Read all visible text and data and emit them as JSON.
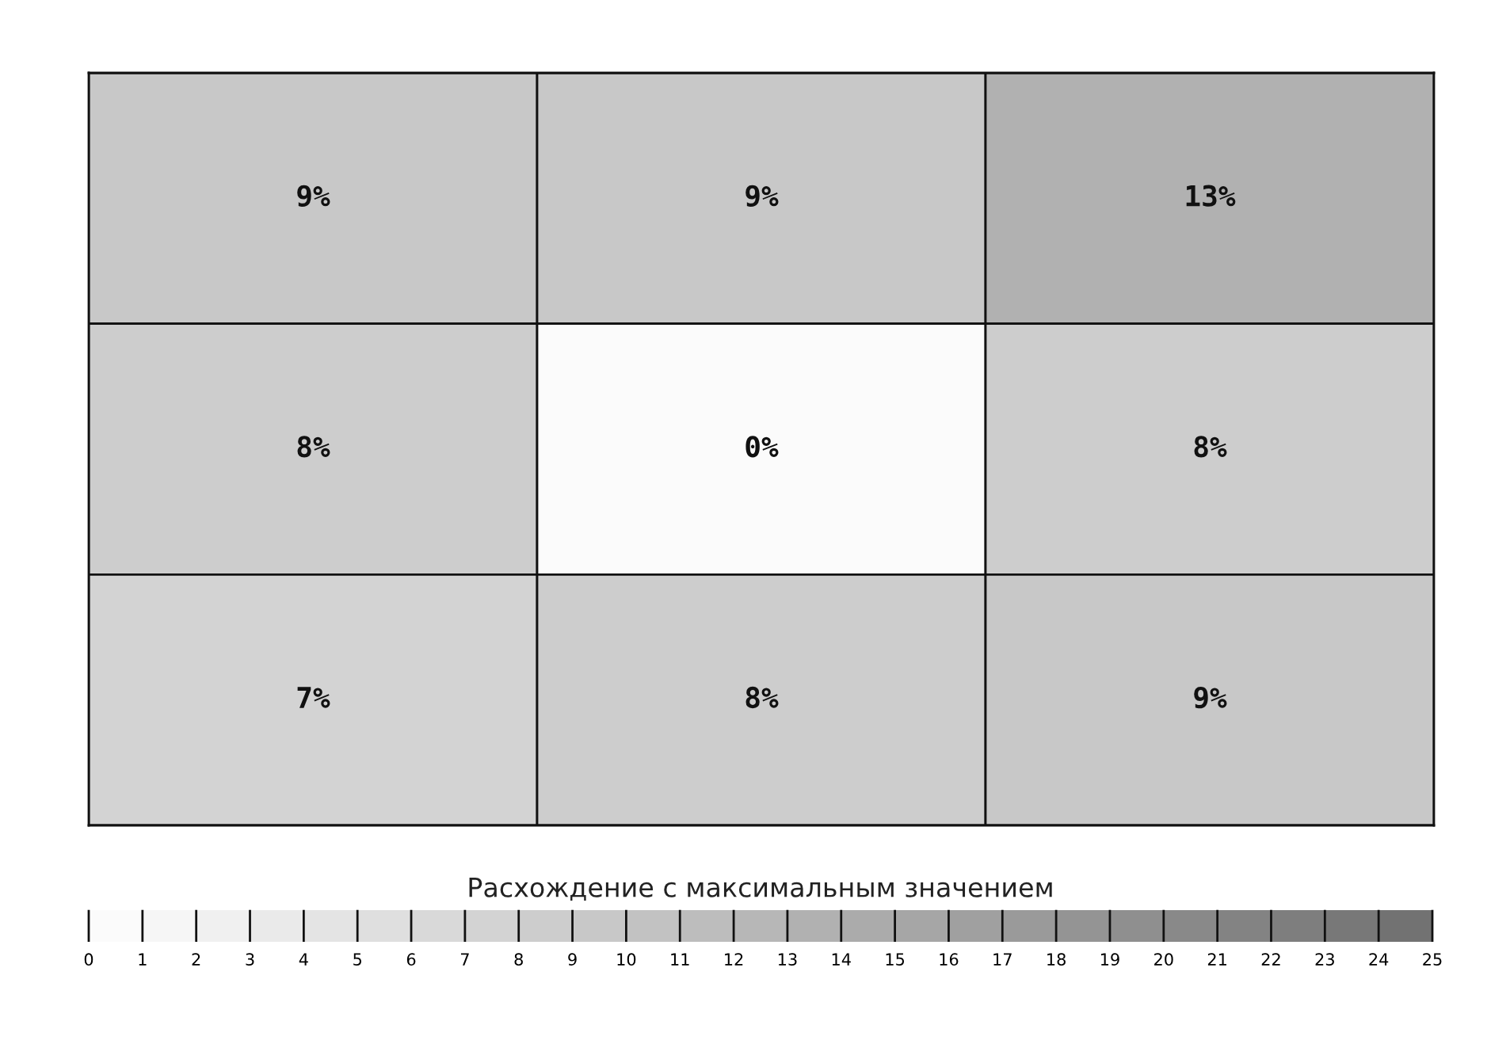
{
  "chart_data": {
    "type": "heatmap",
    "categories": [
      null,
      null,
      null
    ],
    "y_categories": [
      null,
      null,
      null
    ],
    "cells": [
      [
        9,
        9,
        13
      ],
      [
        8,
        0,
        8
      ],
      [
        7,
        8,
        9
      ]
    ],
    "cell_labels": [
      [
        "9%",
        "9%",
        "13%"
      ],
      [
        "8%",
        "0%",
        "8%"
      ],
      [
        "7%",
        "8%",
        "9%"
      ]
    ],
    "clabel": "Расхождение с максимальным значением",
    "clim": [
      0,
      25
    ],
    "cticks": [
      0,
      1,
      2,
      3,
      4,
      5,
      6,
      7,
      8,
      9,
      10,
      11,
      12,
      13,
      14,
      15,
      16,
      17,
      18,
      19,
      20,
      21,
      22,
      23,
      24,
      25
    ]
  }
}
